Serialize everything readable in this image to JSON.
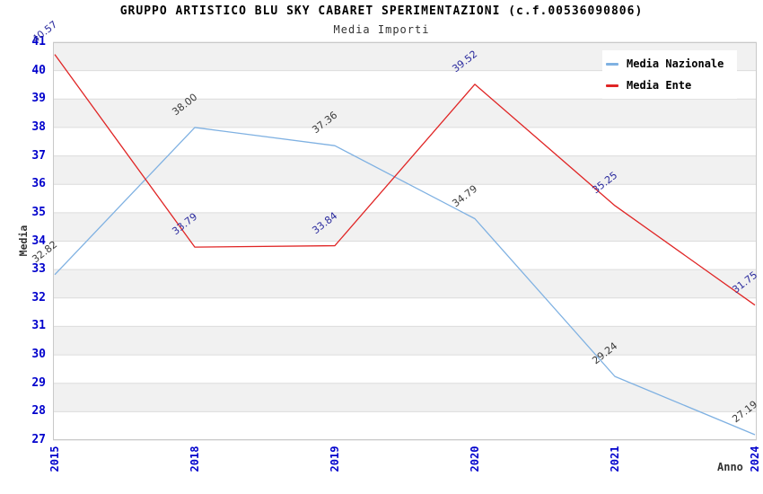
{
  "chart_data": {
    "type": "line",
    "title": "GRUPPO ARTISTICO BLU SKY CABARET SPERIMENTAZIONI (c.f.00536090806)",
    "subtitle": "Media Importi",
    "xlabel": "Anno",
    "ylabel": "Media",
    "categories": [
      "2015",
      "2018",
      "2019",
      "2020",
      "2021",
      "2024"
    ],
    "series": [
      {
        "name": "Media Nazionale",
        "color": "#7fb1e2",
        "label_color": "#3a3a3a",
        "values": [
          32.82,
          38.0,
          37.36,
          34.79,
          29.24,
          27.19
        ]
      },
      {
        "name": "Media Ente",
        "color": "#e02525",
        "label_color": "#2b2b9e",
        "values": [
          40.57,
          33.79,
          33.84,
          39.52,
          35.25,
          31.75
        ]
      }
    ],
    "ylim": [
      27,
      41
    ],
    "y_tick_step": 1,
    "value_label_decimals": 2,
    "legend_position": "top-right",
    "grid": "horizontal-bands",
    "band_fill": "#f1f1f1",
    "grid_line_color": "#dcdcdc",
    "plot_border_color": "#c9c9c9",
    "tick_label_color": "#0000cc",
    "axis_label_color": "#333333"
  }
}
